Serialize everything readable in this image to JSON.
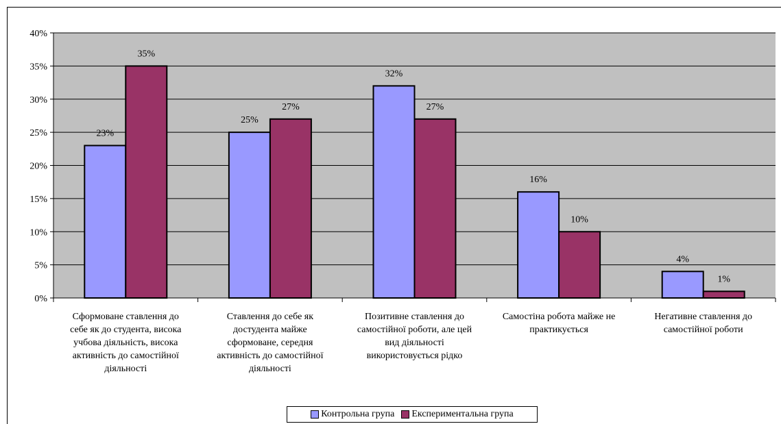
{
  "chart_data": {
    "type": "bar",
    "categories": [
      "Сформоване ставлення до себе як до студента, висока учбова діяльність, висока активність до самостійної діяльності",
      "Ставлення до себе як достудента майже сформоване, середня активність до самостійної діяльності",
      "Позитивне ставлення до самостійної роботи, але цей вид діяльності використовується рідко",
      "Самостіна робота майже не практикується",
      "Негативне ставлення до самостійної роботи"
    ],
    "category_lines": [
      [
        "Сформоване ставлення до",
        "себе як до студента, висока",
        "учбова діяльність, висока",
        "активність до самостійної",
        "діяльності"
      ],
      [
        "Ставлення до себе як",
        "достудента майже",
        "сформоване, середня",
        "активність до самостійної",
        "діяльності"
      ],
      [
        "Позитивне ставлення до",
        "самостійної роботи, але цей",
        "вид діяльності",
        "використовується рідко"
      ],
      [
        "Самостіна робота майже не",
        "практикується"
      ],
      [
        "Негативне ставлення до",
        "самостійної роботи"
      ]
    ],
    "series": [
      {
        "name": "Контрольна група",
        "values": [
          23,
          25,
          32,
          16,
          4
        ],
        "labels": [
          "23%",
          "25%",
          "32%",
          "16%",
          "4%"
        ],
        "color": "#9999ff"
      },
      {
        "name": "Експериментальна група",
        "values": [
          35,
          27,
          27,
          10,
          1
        ],
        "labels": [
          "35%",
          "27%",
          "27%",
          "10%",
          "1%"
        ],
        "color": "#993366"
      }
    ],
    "ylim": [
      0,
      40
    ],
    "yticks": [
      "0%",
      "5%",
      "10%",
      "15%",
      "20%",
      "25%",
      "30%",
      "35%",
      "40%"
    ],
    "grid": true,
    "plot_background": "#c0c0c0",
    "legend_position": "bottom"
  },
  "legend": {
    "control": "Контрольна група",
    "experimental": "Експериментальна група"
  }
}
